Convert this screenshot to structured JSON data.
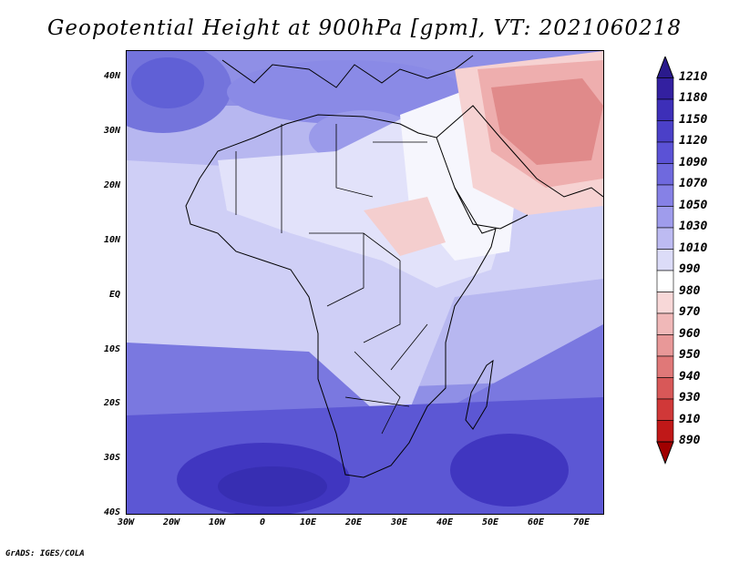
{
  "title": "Geopotential Height at 900hPa [gpm], VT: 2021060218",
  "credit": "GrADS: IGES/COLA",
  "map": {
    "projection": "lat-lon",
    "lon_range": [
      -30,
      75
    ],
    "lat_range": [
      -40,
      45
    ],
    "lat_ticks": [
      "40N",
      "30N",
      "20N",
      "10N",
      "EQ",
      "10S",
      "20S",
      "30S",
      "40S"
    ],
    "lon_ticks": [
      "30W",
      "20W",
      "10W",
      "0",
      "10E",
      "20E",
      "30E",
      "40E",
      "50E",
      "60E",
      "70E"
    ]
  },
  "colorbar": {
    "labels": [
      "1210",
      "1180",
      "1150",
      "1120",
      "1090",
      "1070",
      "1050",
      "1030",
      "1010",
      "990",
      "980",
      "970",
      "960",
      "950",
      "940",
      "930",
      "910",
      "890"
    ],
    "colors": [
      "#2a1a8c",
      "#3320a0",
      "#3d2fb8",
      "#4b40c8",
      "#5b52d6",
      "#6f69de",
      "#8681e6",
      "#9f9cec",
      "#bdbbf2",
      "#dcdcf8",
      "#ffffff",
      "#f8d8d8",
      "#f0b8b8",
      "#e89898",
      "#e07878",
      "#d85858",
      "#d03838",
      "#c01818",
      "#a00000"
    ]
  }
}
